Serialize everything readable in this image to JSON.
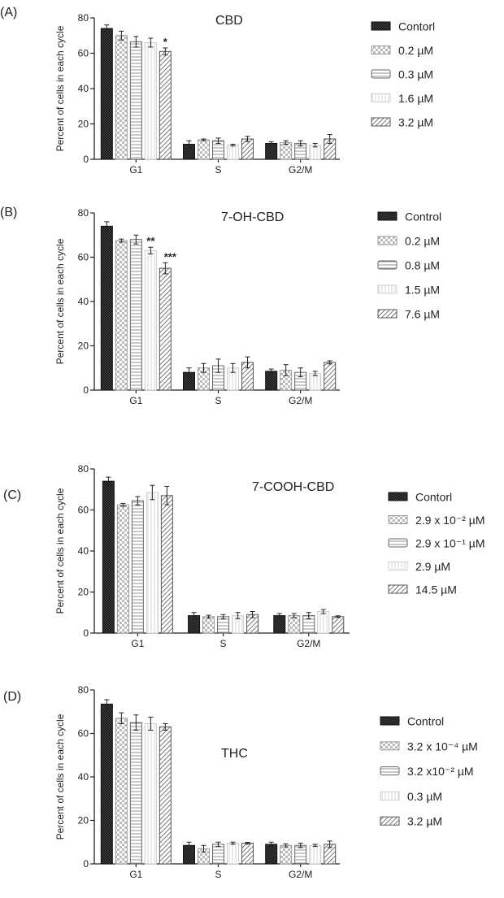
{
  "chart_data": [
    {
      "type": "bar",
      "panel_label": "(A)",
      "title": "CBD",
      "ylabel": "Percent of cells in each cycle",
      "ylim": [
        0,
        80
      ],
      "yticks": [
        "0",
        "20",
        "40",
        "60",
        "80"
      ],
      "categories": [
        "G1",
        "S",
        "G2/M"
      ],
      "series": [
        {
          "name": "Contorl",
          "values": [
            74,
            8.5,
            9
          ],
          "errors": [
            2,
            2,
            1
          ],
          "pattern": "dark-check"
        },
        {
          "name": "0.2 µM",
          "values": [
            70,
            11,
            9.5
          ],
          "errors": [
            2.5,
            0.5,
            1
          ],
          "pattern": "light-check"
        },
        {
          "name": "0.3 µM",
          "values": [
            66.5,
            10.5,
            9
          ],
          "errors": [
            3,
            1.5,
            1.5
          ],
          "pattern": "horizontal"
        },
        {
          "name": "1.6 µM",
          "values": [
            66,
            8,
            8
          ],
          "errors": [
            2.5,
            0.5,
            1
          ],
          "pattern": "vertical"
        },
        {
          "name": "3.2 µM",
          "values": [
            61,
            11.5,
            11.5
          ],
          "errors": [
            2,
            1.5,
            2.5
          ],
          "pattern": "diagonal"
        }
      ],
      "annotations": [
        {
          "series": 4,
          "category": 0,
          "text": "*"
        }
      ],
      "legend": "right"
    },
    {
      "type": "bar",
      "panel_label": "(B)",
      "title": "7-OH-CBD",
      "ylabel": "Percent of cells in each cycle",
      "ylim": [
        0,
        80
      ],
      "yticks": [
        "0",
        "20",
        "40",
        "60",
        "80"
      ],
      "categories": [
        "G1",
        "S",
        "G2/M"
      ],
      "series": [
        {
          "name": "Control",
          "values": [
            74,
            8,
            8.5
          ],
          "errors": [
            2,
            2,
            1
          ],
          "pattern": "dark-check"
        },
        {
          "name": "0.2 µM",
          "values": [
            67.5,
            10,
            9
          ],
          "errors": [
            0.7,
            2,
            2.5
          ],
          "pattern": "light-check"
        },
        {
          "name": "0.8 µM",
          "values": [
            68,
            11,
            8
          ],
          "errors": [
            2,
            3,
            2
          ],
          "pattern": "horizontal"
        },
        {
          "name": "1.5 µM",
          "values": [
            63,
            10,
            7.5
          ],
          "errors": [
            1.5,
            2,
            1
          ],
          "pattern": "vertical"
        },
        {
          "name": "7.6 µM",
          "values": [
            55,
            12.5,
            12.5
          ],
          "errors": [
            2.5,
            2.5,
            0.7
          ],
          "pattern": "diagonal"
        }
      ],
      "annotations": [
        {
          "series": 3,
          "category": 0,
          "text": "**"
        },
        {
          "series": 4,
          "category": 0,
          "text": "***"
        }
      ],
      "legend": "right"
    },
    {
      "type": "bar",
      "panel_label": "(C)",
      "title": "7-COOH-CBD",
      "ylabel": "Percent of cells in each cycle",
      "ylim": [
        0,
        80
      ],
      "yticks": [
        "0",
        "20",
        "40",
        "60",
        "80"
      ],
      "categories": [
        "G1",
        "S",
        "G2/M"
      ],
      "series": [
        {
          "name": "Contorl",
          "values": [
            74,
            8.5,
            8.5
          ],
          "errors": [
            2,
            1.5,
            1
          ],
          "pattern": "dark-check"
        },
        {
          "name": "2.9 x 10⁻² µM",
          "values": [
            62.5,
            8,
            8.5
          ],
          "errors": [
            0.7,
            0.7,
            1
          ],
          "pattern": "light-check"
        },
        {
          "name": "2.9 x 10⁻¹ µM",
          "values": [
            64.5,
            8,
            8.5
          ],
          "errors": [
            2,
            1,
            1.5
          ],
          "pattern": "horizontal"
        },
        {
          "name": "2.9 µM",
          "values": [
            68.5,
            8.5,
            10.5
          ],
          "errors": [
            3.5,
            1.5,
            1
          ],
          "pattern": "vertical"
        },
        {
          "name": "14.5 µM",
          "values": [
            67,
            9,
            8
          ],
          "errors": [
            4.5,
            1.5,
            0.4
          ],
          "pattern": "diagonal"
        }
      ],
      "annotations": [],
      "legend": "right"
    },
    {
      "type": "bar",
      "panel_label": "(D)",
      "title": "THC",
      "ylabel": "Percent of cells in each cycle",
      "ylim": [
        0,
        80
      ],
      "yticks": [
        "0",
        "20",
        "40",
        "60",
        "80"
      ],
      "categories": [
        "G1",
        "S",
        "G2/M"
      ],
      "series": [
        {
          "name": "Control",
          "values": [
            73.5,
            8.5,
            9
          ],
          "errors": [
            2,
            1.5,
            1
          ],
          "pattern": "dark-check"
        },
        {
          "name": "3.2 x 10⁻⁴ µM",
          "values": [
            67,
            7,
            8.5
          ],
          "errors": [
            2.5,
            1.5,
            0.7
          ],
          "pattern": "light-check"
        },
        {
          "name": "3.2 x10⁻² µM",
          "values": [
            65,
            9,
            8.5
          ],
          "errors": [
            3.5,
            1,
            1
          ],
          "pattern": "horizontal"
        },
        {
          "name": "0.3 µM",
          "values": [
            64.5,
            9.5,
            8.5
          ],
          "errors": [
            3,
            0.5,
            0.5
          ],
          "pattern": "vertical"
        },
        {
          "name": "3.2 µM",
          "values": [
            63,
            9.5,
            9
          ],
          "errors": [
            1.5,
            0.4,
            1.5
          ],
          "pattern": "diagonal"
        }
      ],
      "annotations": [],
      "legend": "right"
    }
  ]
}
